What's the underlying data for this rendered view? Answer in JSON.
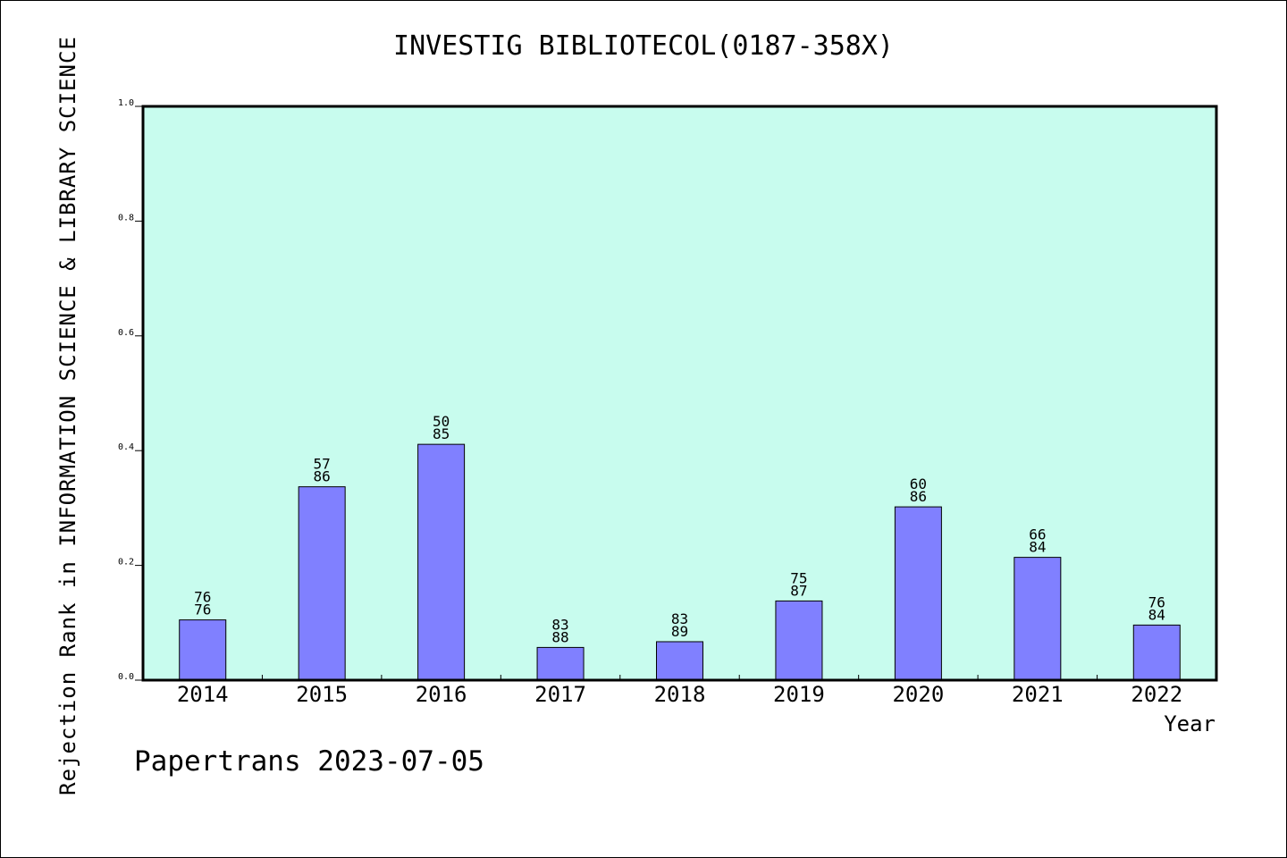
{
  "chart_data": {
    "type": "bar",
    "title": "INVESTIG BIBLIOTECOL(0187-358X)",
    "xlabel": "Year",
    "ylabel": "Rejection Rank in INFORMATION SCIENCE & LIBRARY SCIENCE",
    "categories": [
      "2014",
      "2015",
      "2016",
      "2017",
      "2018",
      "2019",
      "2020",
      "2021",
      "2022"
    ],
    "values": [
      0.105,
      0.337,
      0.411,
      0.057,
      0.067,
      0.138,
      0.302,
      0.214,
      0.096
    ],
    "labels_top": [
      "76",
      "57",
      "50",
      "83",
      "83",
      "75",
      "60",
      "66",
      "76"
    ],
    "labels_bottom": [
      "76",
      "86",
      "85",
      "88",
      "89",
      "87",
      "86",
      "84",
      "84"
    ],
    "ylim": [
      0,
      1.0
    ],
    "yticks": [
      "0.0",
      "0.2",
      "0.4",
      "0.6",
      "0.8",
      "1.0"
    ],
    "grid": false,
    "colors": {
      "plot_background": "#c8fcee",
      "bar_fill": "#8080ff",
      "bar_stroke": "#000000"
    }
  },
  "footer": {
    "note": "Papertrans 2023-07-05"
  }
}
